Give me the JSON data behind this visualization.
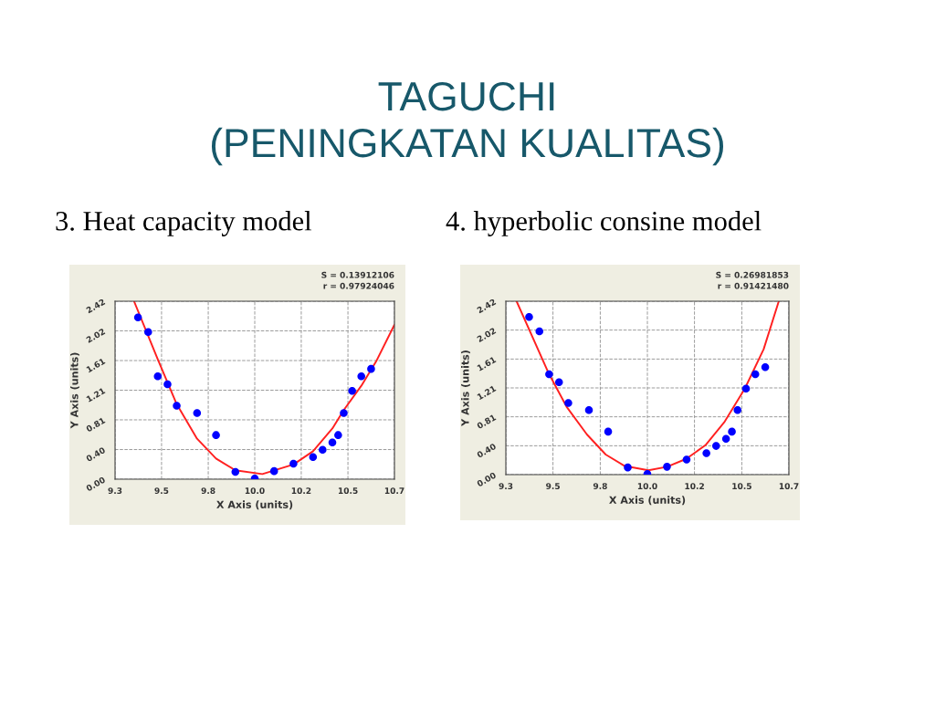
{
  "chart_data": [
    {
      "type": "scatter",
      "title": "TAGUCHI\n(PENINGKATAN KUALITAS)",
      "subtitle": "3. Heat capacity model",
      "xlabel": "X Axis (units)",
      "ylabel": "Y Axis (units)",
      "annotations": [
        "S = 0.13912106",
        "r = 0.97924046"
      ],
      "xlim": [
        9.3,
        10.7
      ],
      "ylim": [
        0,
        2.42
      ],
      "xticks": [
        {
          "value": 9.3,
          "label": "9.3"
        },
        {
          "value": 9.533,
          "label": "9.5"
        },
        {
          "value": 9.767,
          "label": "9.8"
        },
        {
          "value": 10.0,
          "label": "10.0"
        },
        {
          "value": 10.233,
          "label": "10.2"
        },
        {
          "value": 10.467,
          "label": "10.5"
        },
        {
          "value": 10.7,
          "label": "10.7"
        }
      ],
      "yticks": [
        {
          "value": 0,
          "label": "0.00"
        },
        {
          "value": 0.403,
          "label": "0.40"
        },
        {
          "value": 0.807,
          "label": "0.81"
        },
        {
          "value": 1.21,
          "label": "1.21"
        },
        {
          "value": 1.613,
          "label": "1.61"
        },
        {
          "value": 2.017,
          "label": "2.02"
        },
        {
          "value": 2.42,
          "label": "2.42"
        }
      ],
      "grid": true,
      "series": [
        {
          "marker": "circle",
          "color": "#0000ff",
          "x": [
            9.415,
            9.466,
            9.514,
            9.563,
            9.609,
            9.711,
            9.806,
            9.903,
            10.0,
            10.097,
            10.194,
            10.292,
            10.34,
            10.389,
            10.418,
            10.446,
            10.488,
            10.534,
            10.583
          ],
          "values": [
            2.2,
            2.0,
            1.4,
            1.29,
            1.0,
            0.9,
            0.6,
            0.1,
            0.01,
            0.11,
            0.21,
            0.3,
            0.4,
            0.5,
            0.6,
            0.9,
            1.2,
            1.4,
            1.5
          ]
        },
        {
          "type": "line",
          "color": "#ff2020",
          "x": [
            9.395,
            9.514,
            9.609,
            9.711,
            9.806,
            9.903,
            10.038,
            10.194,
            10.292,
            10.389,
            10.446,
            10.534,
            10.608,
            10.7
          ],
          "values": [
            2.42,
            1.63,
            1.02,
            0.55,
            0.28,
            0.12,
            0.07,
            0.2,
            0.38,
            0.69,
            0.94,
            1.27,
            1.6,
            2.1
          ]
        }
      ]
    },
    {
      "type": "scatter",
      "subtitle": "4. hyperbolic consine model",
      "xlabel": "X Axis (units)",
      "ylabel": "Y Axis (units)",
      "annotations": [
        "S = 0.26981853",
        "r = 0.91421480"
      ],
      "xlim": [
        9.3,
        10.7
      ],
      "ylim": [
        0,
        2.42
      ],
      "xticks": [
        {
          "value": 9.3,
          "label": "9.3"
        },
        {
          "value": 9.533,
          "label": "9.5"
        },
        {
          "value": 9.767,
          "label": "9.8"
        },
        {
          "value": 10.0,
          "label": "10.0"
        },
        {
          "value": 10.233,
          "label": "10.2"
        },
        {
          "value": 10.467,
          "label": "10.5"
        },
        {
          "value": 10.7,
          "label": "10.7"
        }
      ],
      "yticks": [
        {
          "value": 0,
          "label": "0.00"
        },
        {
          "value": 0.403,
          "label": "0.40"
        },
        {
          "value": 0.807,
          "label": "0.81"
        },
        {
          "value": 1.21,
          "label": "1.21"
        },
        {
          "value": 1.613,
          "label": "1.61"
        },
        {
          "value": 2.017,
          "label": "2.02"
        },
        {
          "value": 2.42,
          "label": "2.42"
        }
      ],
      "grid": true,
      "series": [
        {
          "marker": "circle",
          "color": "#0000ff",
          "x": [
            9.415,
            9.466,
            9.514,
            9.563,
            9.609,
            9.711,
            9.806,
            9.903,
            10.0,
            10.097,
            10.194,
            10.292,
            10.34,
            10.389,
            10.418,
            10.446,
            10.488,
            10.534,
            10.583
          ],
          "values": [
            2.2,
            2.0,
            1.4,
            1.29,
            1.0,
            0.9,
            0.6,
            0.1,
            0.01,
            0.11,
            0.21,
            0.3,
            0.4,
            0.5,
            0.6,
            0.9,
            1.2,
            1.4,
            1.5
          ]
        },
        {
          "type": "line",
          "color": "#ff2020",
          "x": [
            9.353,
            9.509,
            9.602,
            9.701,
            9.794,
            9.888,
            10.005,
            10.098,
            10.192,
            10.287,
            10.38,
            10.482,
            10.575,
            10.65
          ],
          "values": [
            2.42,
            1.43,
            0.94,
            0.56,
            0.28,
            0.12,
            0.06,
            0.11,
            0.22,
            0.41,
            0.73,
            1.2,
            1.75,
            2.42
          ]
        }
      ]
    }
  ]
}
